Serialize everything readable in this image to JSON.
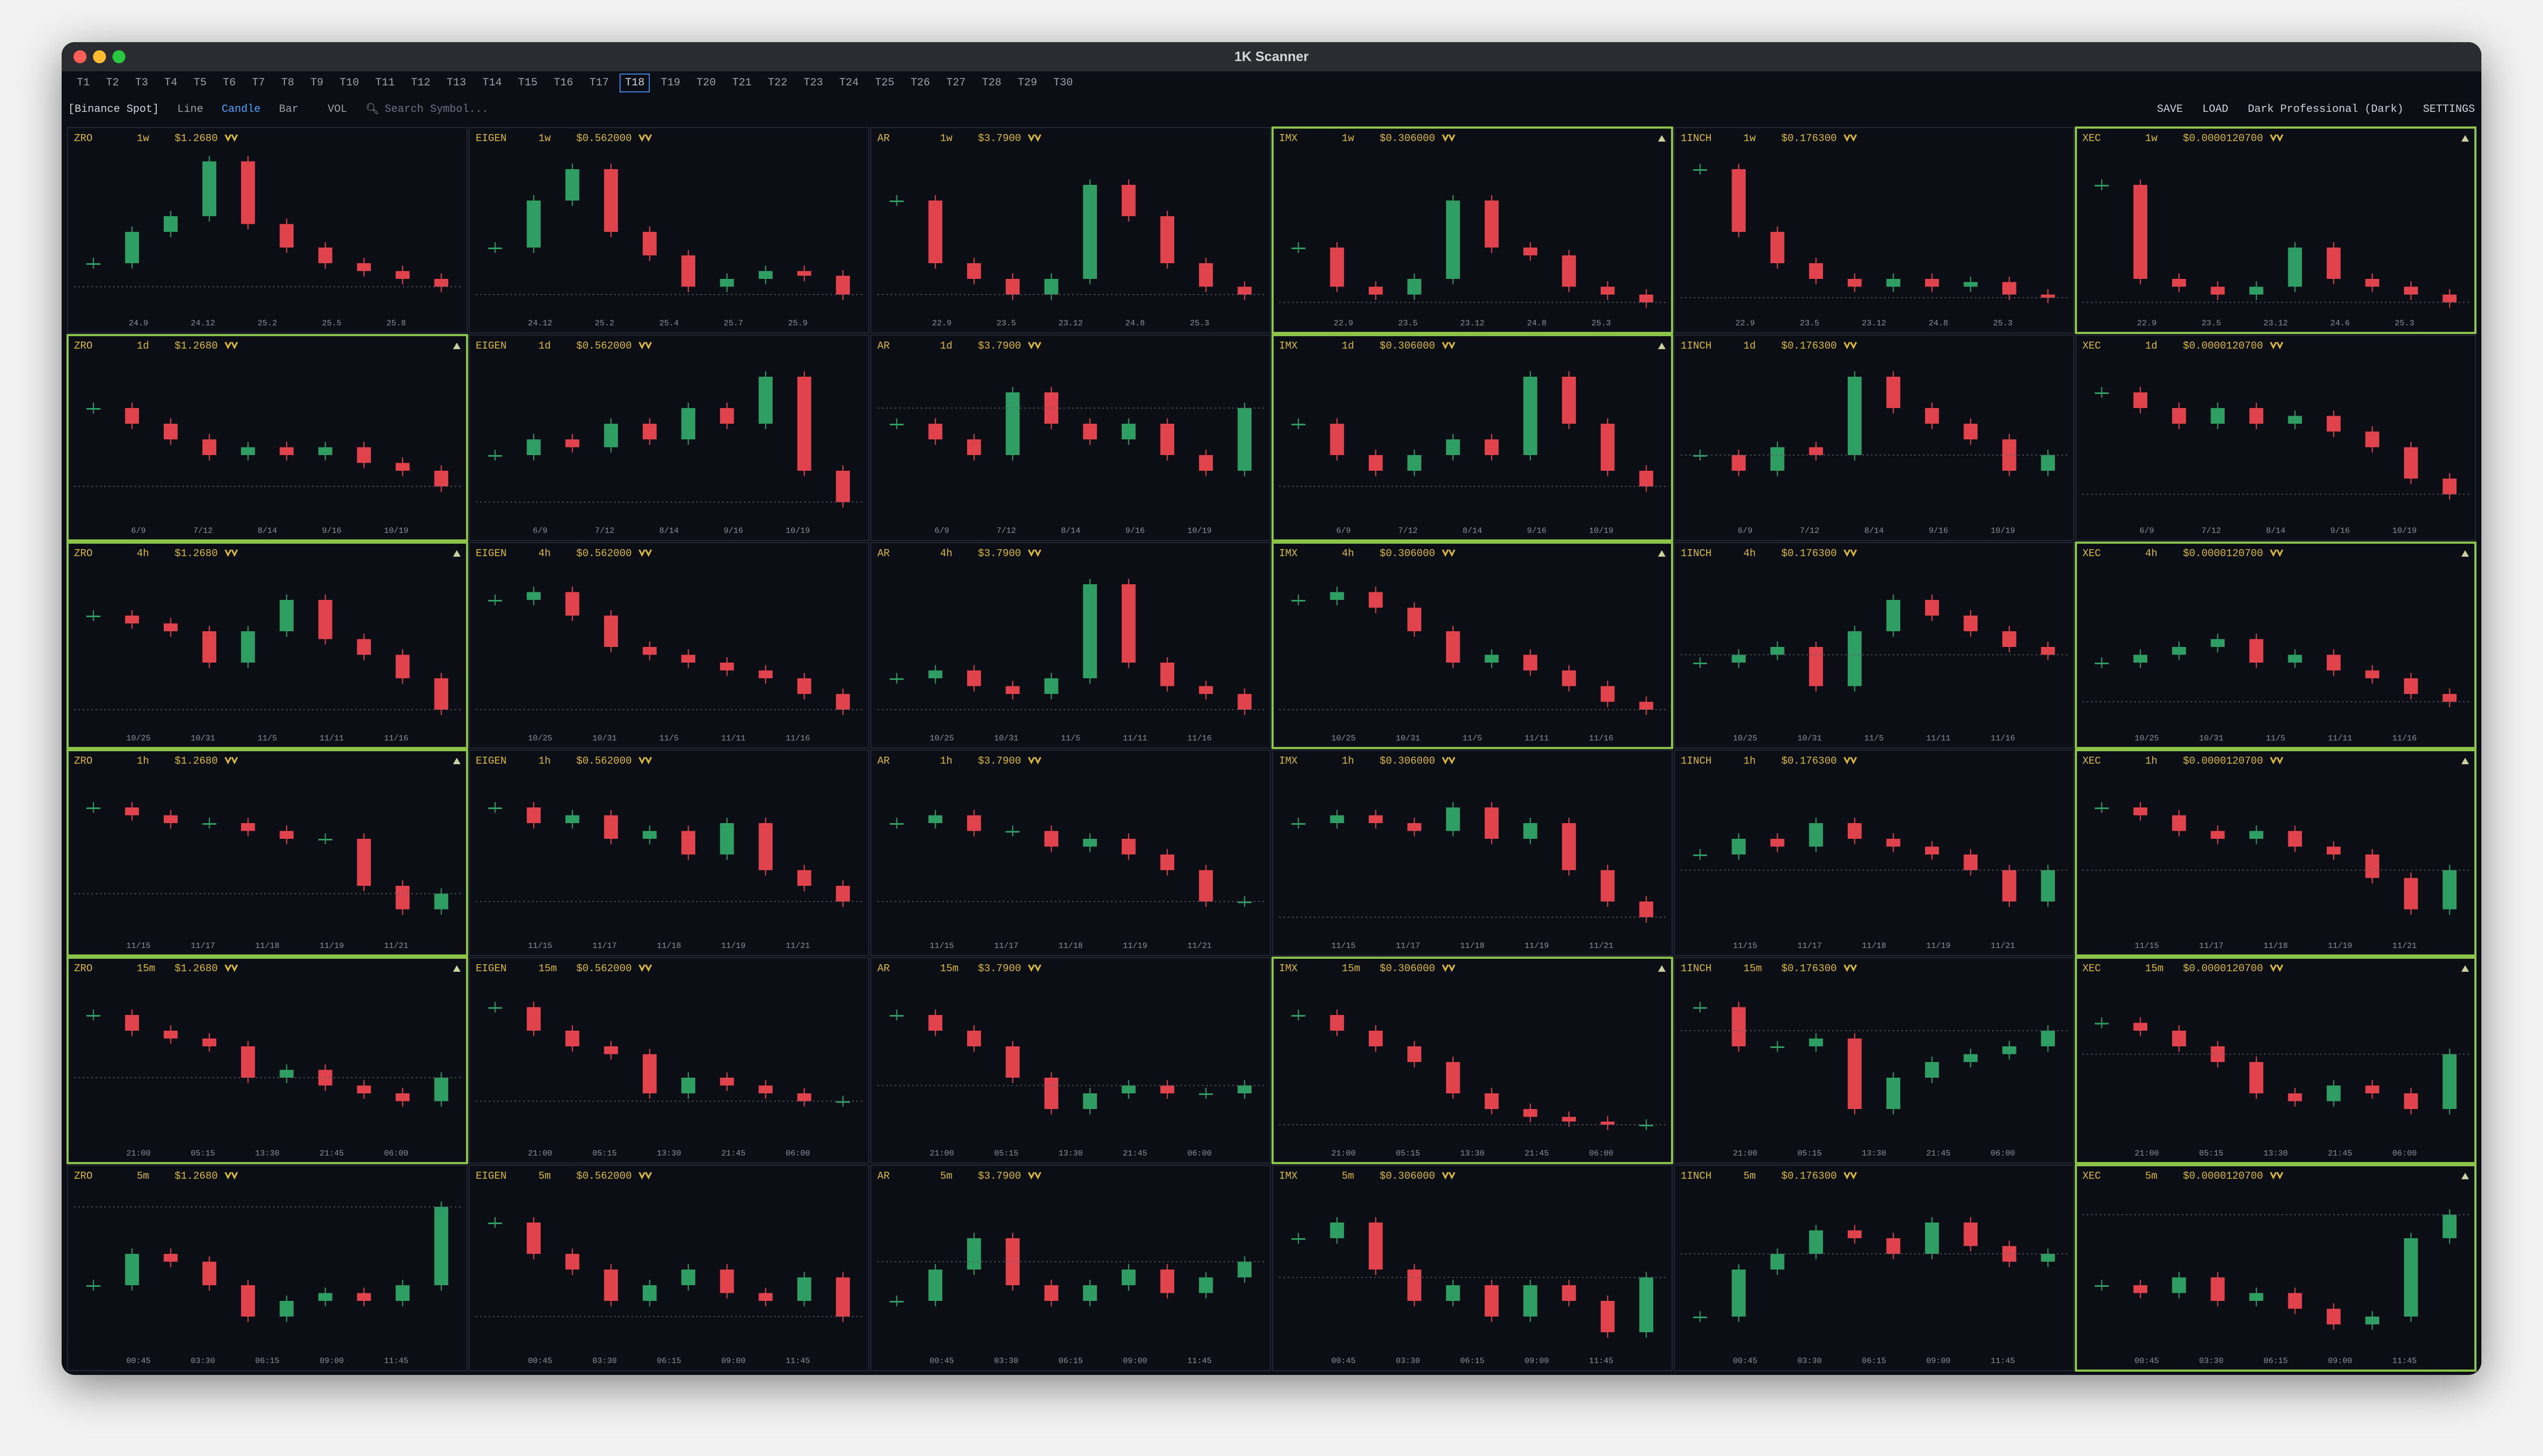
{
  "window_title": "1K Scanner",
  "tabs": [
    "T1",
    "T2",
    "T3",
    "T4",
    "T5",
    "T6",
    "T7",
    "T8",
    "T9",
    "T10",
    "T11",
    "T12",
    "T13",
    "T14",
    "T15",
    "T16",
    "T17",
    "T18",
    "T19",
    "T20",
    "T21",
    "T22",
    "T23",
    "T24",
    "T25",
    "T26",
    "T27",
    "T28",
    "T29",
    "T30"
  ],
  "active_tab": 17,
  "toolbar": {
    "exchange": "[Binance Spot]",
    "chart_modes": [
      "Line",
      "Candle",
      "Bar"
    ],
    "active_mode": 1,
    "vol": "VOL",
    "search_placeholder": "Search Symbol...",
    "right_buttons": [
      "SAVE",
      "LOAD"
    ],
    "theme": "Dark Professional (Dark)",
    "settings": "SETTINGS"
  },
  "ylim": [
    0,
    100
  ],
  "symbols": [
    {
      "name": "ZRO",
      "price": "$1.2680"
    },
    {
      "name": "EIGEN",
      "price": "$0.562000"
    },
    {
      "name": "AR",
      "price": "$3.7900"
    },
    {
      "name": "IMX",
      "price": "$0.306000"
    },
    {
      "name": "1INCH",
      "price": "$0.176300"
    },
    {
      "name": "XEC",
      "price": "$0.0000120700"
    }
  ],
  "rows": [
    {
      "timeframe": "1w",
      "charts": [
        {
          "x_labels": [
            "24.9",
            "24.12",
            "25.2",
            "25.5",
            "25.8"
          ],
          "values": [
            30,
            50,
            60,
            95,
            55,
            40,
            30,
            25,
            20,
            15
          ],
          "highlighted": false
        },
        {
          "x_labels": [
            "24.12",
            "25.2",
            "25.4",
            "25.7",
            "25.9"
          ],
          "values": [
            40,
            70,
            90,
            50,
            35,
            15,
            20,
            25,
            22,
            10
          ],
          "highlighted": false
        },
        {
          "x_labels": [
            "22.9",
            "23.5",
            "23.12",
            "24.8",
            "25.3"
          ],
          "values": [
            70,
            30,
            20,
            10,
            20,
            80,
            60,
            30,
            15,
            10
          ],
          "highlighted": false
        },
        {
          "x_labels": [
            "22.9",
            "23.5",
            "23.12",
            "24.8",
            "25.3"
          ],
          "values": [
            40,
            15,
            10,
            20,
            70,
            40,
            35,
            15,
            10,
            5
          ],
          "highlighted": true
        },
        {
          "x_labels": [
            "22.9",
            "23.5",
            "23.12",
            "24.8",
            "25.3"
          ],
          "values": [
            90,
            50,
            30,
            20,
            15,
            20,
            15,
            18,
            10,
            8
          ],
          "highlighted": false
        },
        {
          "x_labels": [
            "22.9",
            "23.5",
            "23.12",
            "24.6",
            "25.3"
          ],
          "values": [
            80,
            20,
            15,
            10,
            15,
            40,
            20,
            15,
            10,
            5
          ],
          "highlighted": true
        }
      ]
    },
    {
      "timeframe": "1d",
      "x_labels": [
        "6/9",
        "7/12",
        "8/14",
        "9/16",
        "10/19"
      ],
      "charts": [
        {
          "values": [
            70,
            60,
            50,
            40,
            45,
            40,
            45,
            35,
            30,
            20
          ],
          "highlighted": true
        },
        {
          "values": [
            40,
            50,
            45,
            60,
            50,
            70,
            60,
            90,
            30,
            10
          ],
          "highlighted": false
        },
        {
          "values": [
            60,
            50,
            40,
            80,
            60,
            50,
            60,
            40,
            30,
            70
          ],
          "highlighted": false
        },
        {
          "values": [
            60,
            40,
            30,
            40,
            50,
            40,
            90,
            60,
            30,
            20
          ],
          "highlighted": true
        },
        {
          "values": [
            40,
            30,
            45,
            40,
            90,
            70,
            60,
            50,
            30,
            40
          ],
          "highlighted": false
        },
        {
          "values": [
            80,
            70,
            60,
            70,
            60,
            65,
            55,
            45,
            25,
            15
          ],
          "highlighted": false
        }
      ]
    },
    {
      "timeframe": "4h",
      "x_labels": [
        "10/25",
        "10/31",
        "11/5",
        "11/11",
        "11/16"
      ],
      "charts": [
        {
          "values": [
            70,
            65,
            60,
            40,
            60,
            80,
            55,
            45,
            30,
            10
          ],
          "highlighted": true
        },
        {
          "values": [
            80,
            85,
            70,
            50,
            45,
            40,
            35,
            30,
            20,
            10
          ],
          "highlighted": false
        },
        {
          "values": [
            30,
            35,
            25,
            20,
            30,
            90,
            40,
            25,
            20,
            10
          ],
          "highlighted": false
        },
        {
          "values": [
            80,
            85,
            75,
            60,
            40,
            45,
            35,
            25,
            15,
            10
          ],
          "highlighted": true
        },
        {
          "values": [
            40,
            45,
            50,
            25,
            60,
            80,
            70,
            60,
            50,
            45
          ],
          "highlighted": false
        },
        {
          "values": [
            40,
            45,
            50,
            55,
            40,
            45,
            35,
            30,
            20,
            15
          ],
          "highlighted": true
        }
      ]
    },
    {
      "timeframe": "1h",
      "x_labels": [
        "11/15",
        "11/17",
        "11/18",
        "11/19",
        "11/21"
      ],
      "charts": [
        {
          "values": [
            80,
            75,
            70,
            70,
            65,
            60,
            60,
            30,
            15,
            25
          ],
          "highlighted": true
        },
        {
          "values": [
            80,
            70,
            75,
            60,
            65,
            50,
            70,
            40,
            30,
            20
          ],
          "highlighted": false
        },
        {
          "values": [
            70,
            75,
            65,
            65,
            55,
            60,
            50,
            40,
            20,
            20
          ],
          "highlighted": false
        },
        {
          "values": [
            70,
            75,
            70,
            65,
            80,
            60,
            70,
            40,
            20,
            10
          ],
          "highlighted": false
        },
        {
          "values": [
            50,
            60,
            55,
            70,
            60,
            55,
            50,
            40,
            20,
            40
          ],
          "highlighted": false
        },
        {
          "values": [
            80,
            75,
            65,
            60,
            65,
            55,
            50,
            35,
            15,
            40
          ],
          "highlighted": true
        }
      ]
    },
    {
      "timeframe": "15m",
      "x_labels": [
        "21:00",
        "05:15",
        "13:30",
        "21:45",
        "06:00"
      ],
      "charts": [
        {
          "values": [
            80,
            70,
            65,
            60,
            40,
            45,
            35,
            30,
            25,
            40
          ],
          "highlighted": true
        },
        {
          "values": [
            85,
            70,
            60,
            55,
            30,
            40,
            35,
            30,
            25,
            25
          ],
          "highlighted": false
        },
        {
          "values": [
            80,
            70,
            60,
            40,
            20,
            30,
            35,
            30,
            30,
            35
          ],
          "highlighted": false
        },
        {
          "values": [
            80,
            70,
            60,
            50,
            30,
            20,
            15,
            12,
            10,
            10
          ],
          "highlighted": true
        },
        {
          "values": [
            85,
            60,
            60,
            65,
            20,
            40,
            50,
            55,
            60,
            70
          ],
          "highlighted": false
        },
        {
          "values": [
            75,
            70,
            60,
            50,
            30,
            25,
            35,
            30,
            20,
            55
          ],
          "highlighted": true
        }
      ]
    },
    {
      "timeframe": "5m",
      "x_labels": [
        "00:45",
        "03:30",
        "06:15",
        "09:00",
        "11:45"
      ],
      "charts": [
        {
          "values": [
            40,
            60,
            55,
            40,
            20,
            30,
            35,
            30,
            40,
            90
          ],
          "highlighted": false
        },
        {
          "values": [
            80,
            60,
            50,
            30,
            40,
            50,
            35,
            30,
            45,
            20
          ],
          "highlighted": false
        },
        {
          "values": [
            30,
            50,
            70,
            40,
            30,
            40,
            50,
            35,
            45,
            55
          ],
          "highlighted": false
        },
        {
          "values": [
            70,
            80,
            50,
            30,
            40,
            20,
            40,
            30,
            10,
            45
          ],
          "highlighted": false
        },
        {
          "values": [
            20,
            50,
            60,
            75,
            70,
            60,
            80,
            65,
            55,
            60
          ],
          "highlighted": false
        },
        {
          "values": [
            40,
            35,
            45,
            30,
            35,
            25,
            15,
            20,
            70,
            85
          ],
          "highlighted": true
        }
      ]
    }
  ]
}
